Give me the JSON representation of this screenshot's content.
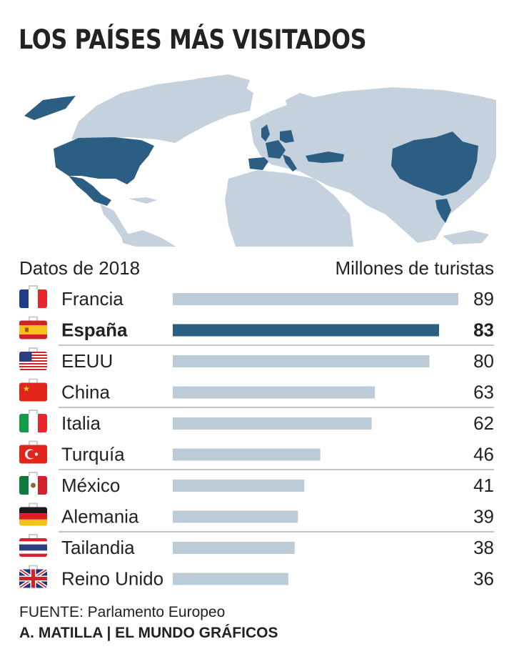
{
  "title": "LOS PAÍSES MÁS VISITADOS",
  "header_left": "Datos de 2018",
  "header_right": "Millones de turistas",
  "source": "FUENTE: Parlamento Europeo",
  "credit": "A. MATILLA | EL MUNDO GRÁFICOS",
  "colors": {
    "highlight": "#2c5d82",
    "bar": "#bccbd8",
    "map_land": "#c5d2de",
    "map_highlight": "#2c5d82",
    "divider": "#8a8a8a"
  },
  "map": {
    "highlighted_countries": [
      "Francia",
      "España",
      "EEUU",
      "China",
      "Italia",
      "Turquía",
      "México",
      "Alemania",
      "Tailandia",
      "Reino Unido"
    ]
  },
  "chart_data": {
    "type": "bar",
    "orientation": "horizontal",
    "title": "LOS PAÍSES MÁS VISITADOS",
    "xlabel": "Millones de turistas",
    "ylabel": "",
    "xlim": [
      0,
      89
    ],
    "highlight": "España",
    "categories": [
      "Francia",
      "España",
      "EEUU",
      "China",
      "Italia",
      "Turquía",
      "México",
      "Alemania",
      "Tailandia",
      "Reino Unido"
    ],
    "values": [
      89,
      83,
      80,
      63,
      62,
      46,
      41,
      39,
      38,
      36
    ],
    "flags": [
      "france-flag",
      "spain-flag",
      "usa-flag",
      "china-flag",
      "italy-flag",
      "turkey-flag",
      "mexico-flag",
      "germany-flag",
      "thailand-flag",
      "uk-flag"
    ]
  }
}
